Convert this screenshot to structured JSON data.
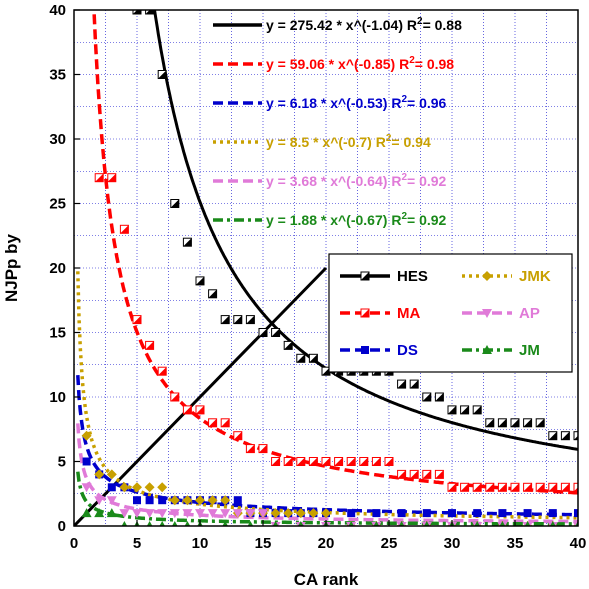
{
  "chart_data": {
    "type": "scatter",
    "xlabel": "CA rank",
    "ylabel": "NJPp by",
    "xlim": [
      0,
      40
    ],
    "ylim": [
      0,
      40
    ],
    "xticks": [
      0,
      5,
      10,
      15,
      20,
      25,
      30,
      35,
      40
    ],
    "yticks": [
      0,
      5,
      10,
      15,
      20,
      25,
      30,
      35,
      40
    ],
    "grid": true,
    "legend_position": "center-right",
    "reference_line": {
      "x": [
        0,
        20
      ],
      "y": [
        0,
        20
      ],
      "color": "#000000"
    },
    "series": [
      {
        "name": "HES",
        "color": "#000000",
        "marker": "half-square",
        "dash": "solid",
        "fit": {
          "a": 275.42,
          "b": -1.04,
          "r2": 0.88,
          "equation": "y = 275.42 * x^(-1.04)",
          "r2_label": "R",
          "r2_exp": "2",
          "r2_value": "= 0.88"
        },
        "points": [
          [
            5,
            40
          ],
          [
            6,
            40
          ],
          [
            7,
            35
          ],
          [
            8,
            25
          ],
          [
            9,
            22
          ],
          [
            10,
            19
          ],
          [
            11,
            18
          ],
          [
            12,
            16
          ],
          [
            13,
            16
          ],
          [
            14,
            16
          ],
          [
            15,
            15
          ],
          [
            16,
            15
          ],
          [
            17,
            14
          ],
          [
            18,
            13
          ],
          [
            19,
            13
          ],
          [
            20,
            12
          ],
          [
            21,
            12
          ],
          [
            22,
            12
          ],
          [
            23,
            12
          ],
          [
            24,
            12
          ],
          [
            25,
            12
          ],
          [
            26,
            11
          ],
          [
            27,
            11
          ],
          [
            28,
            10
          ],
          [
            29,
            10
          ],
          [
            30,
            9
          ],
          [
            31,
            9
          ],
          [
            32,
            9
          ],
          [
            33,
            8
          ],
          [
            34,
            8
          ],
          [
            35,
            8
          ],
          [
            36,
            8
          ],
          [
            37,
            8
          ],
          [
            38,
            7
          ],
          [
            39,
            7
          ],
          [
            40,
            7
          ]
        ]
      },
      {
        "name": "MA",
        "color": "#ff0000",
        "marker": "half-square",
        "dash": "dashed",
        "fit": {
          "a": 59.06,
          "b": -0.85,
          "r2": 0.98,
          "equation": "y = 59.06 * x^(-0.85)",
          "r2_label": "R",
          "r2_exp": "2",
          "r2_value": "= 0.98"
        },
        "points": [
          [
            2,
            27
          ],
          [
            3,
            27
          ],
          [
            4,
            23
          ],
          [
            5,
            16
          ],
          [
            6,
            14
          ],
          [
            7,
            12
          ],
          [
            8,
            10
          ],
          [
            9,
            9
          ],
          [
            10,
            9
          ],
          [
            11,
            8
          ],
          [
            12,
            8
          ],
          [
            13,
            7
          ],
          [
            14,
            6
          ],
          [
            15,
            6
          ],
          [
            16,
            5
          ],
          [
            17,
            5
          ],
          [
            18,
            5
          ],
          [
            19,
            5
          ],
          [
            20,
            5
          ],
          [
            21,
            5
          ],
          [
            22,
            5
          ],
          [
            23,
            5
          ],
          [
            24,
            5
          ],
          [
            25,
            5
          ],
          [
            26,
            4
          ],
          [
            27,
            4
          ],
          [
            28,
            4
          ],
          [
            29,
            4
          ],
          [
            30,
            3
          ],
          [
            31,
            3
          ],
          [
            32,
            3
          ],
          [
            33,
            3
          ],
          [
            34,
            3
          ],
          [
            35,
            3
          ],
          [
            36,
            3
          ],
          [
            37,
            3
          ],
          [
            38,
            3
          ],
          [
            39,
            3
          ],
          [
            40,
            3
          ]
        ]
      },
      {
        "name": "DS",
        "color": "#0000cc",
        "marker": "square",
        "dash": "dashed",
        "fit": {
          "a": 6.18,
          "b": -0.53,
          "r2": 0.96,
          "equation": "y = 6.18 * x^(-0.53)",
          "r2_label": "R",
          "r2_exp": "2",
          "r2_value": "= 0.96"
        },
        "points": [
          [
            1,
            5
          ],
          [
            2,
            4
          ],
          [
            3,
            3
          ],
          [
            4,
            3
          ],
          [
            5,
            2
          ],
          [
            6,
            2
          ],
          [
            7,
            2
          ],
          [
            8,
            2
          ],
          [
            9,
            2
          ],
          [
            10,
            2
          ],
          [
            11,
            2
          ],
          [
            12,
            2
          ],
          [
            13,
            2
          ],
          [
            14,
            1
          ],
          [
            15,
            1
          ],
          [
            16,
            1
          ],
          [
            17,
            1
          ],
          [
            18,
            1
          ],
          [
            19,
            1
          ],
          [
            20,
            1
          ],
          [
            22,
            1
          ],
          [
            24,
            1
          ],
          [
            26,
            1
          ],
          [
            28,
            1
          ],
          [
            30,
            1
          ],
          [
            32,
            1
          ],
          [
            34,
            1
          ],
          [
            36,
            1
          ],
          [
            38,
            1
          ],
          [
            40,
            1
          ]
        ]
      },
      {
        "name": "JMK",
        "color": "#c8a000",
        "marker": "diamond",
        "dash": "dotted",
        "fit": {
          "a": 8.5,
          "b": -0.7,
          "r2": 0.94,
          "equation": "y = 8.5 * x^(-0.7)",
          "r2_label": "R",
          "r2_exp": "2",
          "r2_value": "= 0.94"
        },
        "points": [
          [
            1,
            7
          ],
          [
            2,
            4
          ],
          [
            3,
            4
          ],
          [
            4,
            3
          ],
          [
            5,
            3
          ],
          [
            6,
            3
          ],
          [
            7,
            3
          ],
          [
            8,
            2
          ],
          [
            9,
            2
          ],
          [
            10,
            2
          ],
          [
            11,
            2
          ],
          [
            12,
            2
          ],
          [
            13,
            1
          ],
          [
            14,
            1
          ],
          [
            15,
            1
          ],
          [
            16,
            1
          ],
          [
            17,
            1
          ],
          [
            18,
            1
          ],
          [
            19,
            1
          ],
          [
            20,
            1
          ],
          [
            22,
            0
          ],
          [
            24,
            0
          ],
          [
            26,
            0
          ],
          [
            28,
            0
          ],
          [
            30,
            0
          ],
          [
            32,
            0
          ],
          [
            34,
            0
          ],
          [
            36,
            0
          ],
          [
            38,
            0
          ],
          [
            40,
            0
          ]
        ]
      },
      {
        "name": "AP",
        "color": "#e07ad8",
        "marker": "triangle-down",
        "dash": "dashed",
        "fit": {
          "a": 3.68,
          "b": -0.64,
          "r2": 0.92,
          "equation": "y = 3.68 * x^(-0.64)",
          "r2_label": "R",
          "r2_exp": "2",
          "r2_value": "= 0.92"
        },
        "points": [
          [
            1,
            3
          ],
          [
            2,
            2
          ],
          [
            3,
            2
          ],
          [
            4,
            1
          ],
          [
            5,
            1
          ],
          [
            6,
            1
          ],
          [
            7,
            1
          ],
          [
            8,
            1
          ],
          [
            9,
            1
          ],
          [
            10,
            1
          ],
          [
            11,
            1
          ],
          [
            12,
            1
          ],
          [
            13,
            1
          ],
          [
            14,
            1
          ],
          [
            15,
            1
          ],
          [
            16,
            0
          ],
          [
            18,
            0
          ],
          [
            20,
            0
          ],
          [
            22,
            0
          ],
          [
            24,
            0
          ],
          [
            26,
            0
          ],
          [
            28,
            0
          ],
          [
            30,
            0
          ],
          [
            32,
            0
          ],
          [
            34,
            0
          ],
          [
            36,
            0
          ],
          [
            38,
            0
          ],
          [
            40,
            0
          ]
        ]
      },
      {
        "name": "JM",
        "color": "#1a8a1a",
        "marker": "triangle-up",
        "dash": "dashdot",
        "fit": {
          "a": 1.88,
          "b": -0.67,
          "r2": 0.92,
          "equation": "y = 1.88 * x^(-0.67)",
          "r2_label": "R",
          "r2_exp": "2",
          "r2_value": "= 0.92"
        },
        "points": [
          [
            1,
            1
          ],
          [
            2,
            1
          ],
          [
            3,
            1
          ],
          [
            4,
            0
          ],
          [
            5,
            0
          ],
          [
            6,
            0
          ],
          [
            7,
            0
          ],
          [
            8,
            0
          ],
          [
            9,
            0
          ],
          [
            10,
            0
          ],
          [
            12,
            0
          ],
          [
            14,
            0
          ],
          [
            16,
            0
          ],
          [
            18,
            0
          ],
          [
            20,
            0
          ],
          [
            22,
            0
          ],
          [
            24,
            0
          ],
          [
            26,
            0
          ],
          [
            28,
            0
          ],
          [
            30,
            0
          ],
          [
            32,
            0
          ],
          [
            34,
            0
          ],
          [
            36,
            0
          ],
          [
            38,
            0
          ],
          [
            40,
            0
          ]
        ]
      }
    ]
  }
}
